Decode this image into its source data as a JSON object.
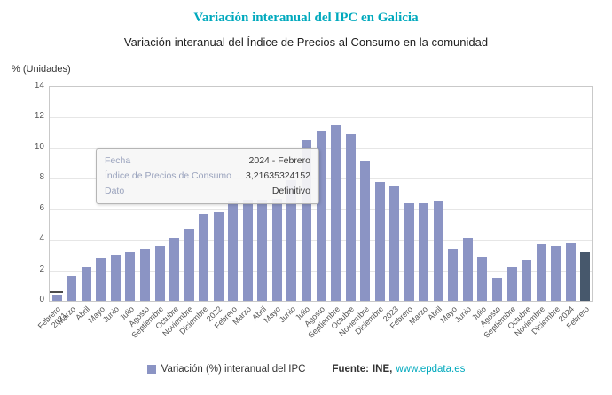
{
  "header": {
    "title": "Variación interanual del IPC en Galicia",
    "subtitle": "Variación interanual del Índice de Precios al Consumo en la comunidad"
  },
  "chart_data": {
    "type": "bar",
    "title": "Variación interanual del IPC en Galicia",
    "subtitle": "Variación interanual del Índice de Precios al Consumo en la comunidad",
    "xlabel": "",
    "ylabel": "% (Unidades)",
    "ylim": [
      0,
      14
    ],
    "yticks": [
      0,
      2,
      4,
      6,
      8,
      10,
      12,
      14
    ],
    "grid": true,
    "legend_position": "bottom",
    "categories": [
      "Febrero 2021",
      "Marzo",
      "Abril",
      "Mayo",
      "Junio",
      "Julio",
      "Agosto",
      "Septiembre",
      "Octubre",
      "Noviembre",
      "Diciembre",
      "2022",
      "Febrero",
      "Marzo",
      "Abril",
      "Mayo",
      "Junio",
      "Julio",
      "Agosto",
      "Septiembre",
      "Octubre",
      "Noviembre",
      "Diciembre",
      "2023",
      "Febrero",
      "Marzo",
      "Abril",
      "Mayo",
      "Junio",
      "Julio",
      "Agosto",
      "Septiembre",
      "Octubre",
      "Noviembre",
      "Diciembre",
      "2024",
      "Febrero"
    ],
    "values": [
      0.4,
      1.6,
      2.2,
      2.8,
      3.0,
      3.2,
      3.4,
      3.6,
      4.1,
      4.7,
      5.7,
      5.8,
      6.5,
      6.6,
      6.6,
      6.7,
      7.9,
      10.5,
      11.1,
      11.5,
      10.9,
      9.2,
      7.8,
      7.5,
      6.4,
      6.4,
      6.5,
      3.4,
      4.1,
      2.9,
      1.5,
      2.2,
      2.7,
      3.7,
      3.6,
      3.8,
      3.2
    ],
    "series_name": "Variación (%) interanual del IPC",
    "highlight_index": 36,
    "bar_color": "#8b94c4",
    "highlight_color": "#47586c"
  },
  "tooltip": {
    "rows": [
      {
        "label": "Fecha",
        "value": "2024 - Febrero"
      },
      {
        "label": "Índice de Precios de Consumo",
        "value": "3,21635324152"
      },
      {
        "label": "Dato",
        "value": "Definitivo"
      }
    ]
  },
  "legend": {
    "series_label": "Variación (%) interanual del IPC",
    "source_label": "Fuente:",
    "source_value": "INE,",
    "source_link": "www.epdata.es"
  },
  "colors": {
    "accent_teal": "#00a9bd",
    "bar": "#8b94c4",
    "bar_highlight": "#47586c",
    "grid": "#e6e6e6"
  }
}
